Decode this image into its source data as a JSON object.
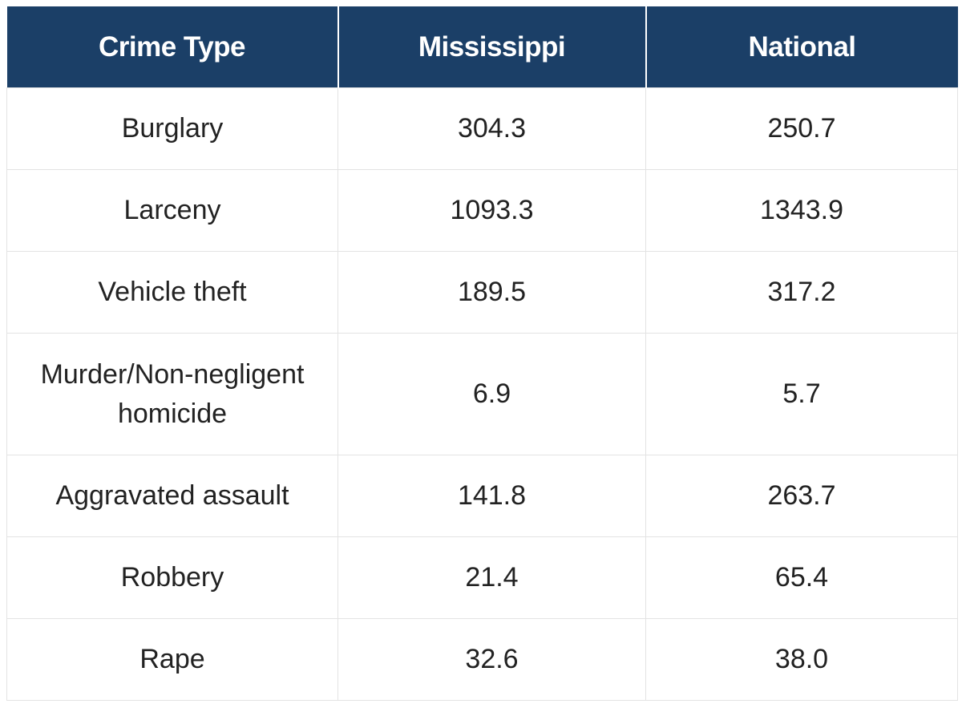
{
  "colors": {
    "header_bg": "#1b3f67",
    "header_text": "#ffffff",
    "cell_text": "#222222",
    "grid_line": "#e3e3e3"
  },
  "table": {
    "headers": [
      "Crime Type",
      "Mississippi",
      "National"
    ],
    "rows": [
      [
        "Burglary",
        "304.3",
        "250.7"
      ],
      [
        "Larceny",
        "1093.3",
        "1343.9"
      ],
      [
        "Vehicle theft",
        "189.5",
        "317.2"
      ],
      [
        "Murder/Non-negligent homicide",
        "6.9",
        "5.7"
      ],
      [
        "Aggravated assault",
        "141.8",
        "263.7"
      ],
      [
        "Robbery",
        "21.4",
        "65.4"
      ],
      [
        "Rape",
        "32.6",
        "38.0"
      ]
    ]
  }
}
